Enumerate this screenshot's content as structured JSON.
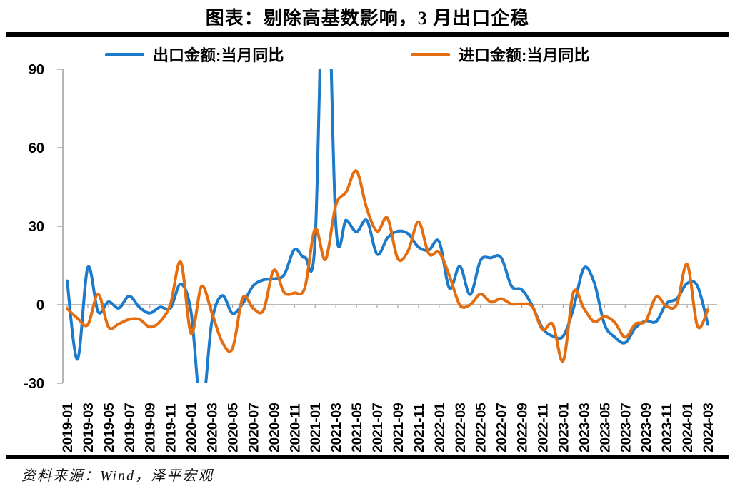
{
  "title": "图表：剔除高基数影响，3 月出口企稳",
  "legend": [
    {
      "label": "出口金额:当月同比",
      "color": "#1b7ac9"
    },
    {
      "label": "进口金额:当月同比",
      "color": "#e36d0f"
    }
  ],
  "footer": {
    "source_text": "资料来源：Wind，泽平宏观"
  },
  "colors": {
    "export_line": "#1b7ac9",
    "import_line": "#e36d0f",
    "axis_gray": "#a3a3a3",
    "divider_black": "#000000"
  },
  "chart_data": {
    "type": "line",
    "title": "图表：剔除高基数影响，3 月出口企稳",
    "xlabel": "",
    "ylabel": "",
    "legend_position": "top",
    "grid": false,
    "ylim": [
      -30,
      90
    ],
    "yticks": [
      90,
      60,
      30,
      0,
      -30
    ],
    "x_tick_step": 2,
    "clip_to_ylim": true,
    "x": [
      "2019-01",
      "2019-02",
      "2019-03",
      "2019-04",
      "2019-05",
      "2019-06",
      "2019-07",
      "2019-08",
      "2019-09",
      "2019-10",
      "2019-11",
      "2019-12",
      "2020-01",
      "2020-02",
      "2020-03",
      "2020-04",
      "2020-05",
      "2020-06",
      "2020-07",
      "2020-08",
      "2020-09",
      "2020-10",
      "2020-11",
      "2020-12",
      "2021-01",
      "2021-02",
      "2021-03",
      "2021-04",
      "2021-05",
      "2021-06",
      "2021-07",
      "2021-08",
      "2021-09",
      "2021-10",
      "2021-11",
      "2021-12",
      "2022-01",
      "2022-02",
      "2022-03",
      "2022-04",
      "2022-05",
      "2022-06",
      "2022-07",
      "2022-08",
      "2022-09",
      "2022-10",
      "2022-11",
      "2022-12",
      "2023-01",
      "2023-02",
      "2023-03",
      "2023-04",
      "2023-05",
      "2023-06",
      "2023-07",
      "2023-08",
      "2023-09",
      "2023-10",
      "2023-11",
      "2023-12",
      "2024-01",
      "2024-02",
      "2024-03"
    ],
    "series": [
      {
        "name": "出口金额:当月同比",
        "color": "#1b7ac9",
        "values": [
          9.1,
          -20.8,
          14.2,
          -2.7,
          1.1,
          -1.3,
          3.3,
          -1,
          -3.2,
          -0.9,
          -1.3,
          7.9,
          -3,
          -40.6,
          -6.6,
          3.5,
          -3.3,
          0.5,
          7.2,
          9.5,
          9.9,
          11.4,
          21.1,
          18.1,
          24.8,
          154.9,
          30.6,
          32.3,
          27.9,
          32.2,
          19.3,
          25.6,
          28.1,
          27.1,
          22,
          20.9,
          24.1,
          6.3,
          14.7,
          3.9,
          16.9,
          17.9,
          18,
          7.1,
          5.7,
          -0.3,
          -9,
          -12,
          -12,
          -1.3,
          14,
          8.5,
          -7.5,
          -12.4,
          -14.5,
          -8.8,
          -6.2,
          -6.4,
          0.5,
          2.3,
          8.2,
          7.1,
          -7.5
        ]
      },
      {
        "name": "进口金额:当月同比",
        "color": "#e36d0f",
        "values": [
          -1.5,
          -5.2,
          -7.6,
          4,
          -8.5,
          -7.3,
          -5.6,
          -5.6,
          -8.5,
          -6.4,
          0.3,
          16.3,
          -11,
          7,
          -3,
          -14.2,
          -16.7,
          2.7,
          -1.4,
          -2.1,
          13.2,
          4.7,
          4.5,
          6.5,
          29,
          17.3,
          38.1,
          43.1,
          51.1,
          36.7,
          28.1,
          33.1,
          17.6,
          20.6,
          31.7,
          19.5,
          19.9,
          11,
          -0.1,
          0,
          4.1,
          1,
          2.3,
          0.3,
          0.3,
          -0.7,
          -9.5,
          -7.5,
          -21.4,
          4.8,
          -1.4,
          -6.5,
          -4.5,
          -6.8,
          -12.4,
          -7.3,
          -6.2,
          3,
          -0.6,
          0.2,
          15.4,
          -8.2,
          -1.9
        ]
      }
    ]
  }
}
